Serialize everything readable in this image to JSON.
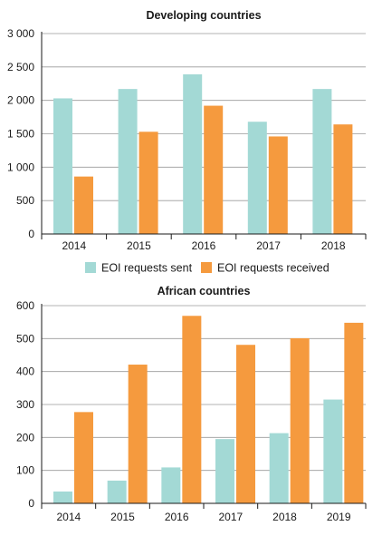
{
  "chart_data": [
    {
      "type": "bar",
      "title": "Developing countries",
      "categories": [
        "2014",
        "2015",
        "2016",
        "2017",
        "2018"
      ],
      "series": [
        {
          "name": "EOI requests sent",
          "values": [
            2030,
            2170,
            2390,
            1680,
            2170
          ]
        },
        {
          "name": "EOI requests received",
          "values": [
            860,
            1530,
            1920,
            1460,
            1640
          ]
        }
      ],
      "yticks": [
        "0",
        "500",
        "1 000",
        "1 500",
        "2 000",
        "2 500",
        "3 000"
      ],
      "ylim": [
        0,
        3000
      ],
      "grid": true,
      "legend": "bottom"
    },
    {
      "type": "bar",
      "title": "African countries",
      "categories": [
        "2014",
        "2015",
        "2016",
        "2017",
        "2018",
        "2019"
      ],
      "series": [
        {
          "name": "EOI requests sent",
          "values": [
            36,
            69,
            109,
            195,
            213,
            315
          ]
        },
        {
          "name": "EOI requests received",
          "values": [
            277,
            421,
            569,
            481,
            501,
            548
          ]
        }
      ],
      "yticks": [
        "0",
        "100",
        "200",
        "300",
        "400",
        "500",
        "600"
      ],
      "ylim": [
        0,
        600
      ],
      "grid": true
    }
  ],
  "legend": {
    "sent_label": "EOI requests sent",
    "received_label": "EOI requests received"
  },
  "colors": {
    "sent": "#a3d9d5",
    "received": "#f59a3e"
  }
}
